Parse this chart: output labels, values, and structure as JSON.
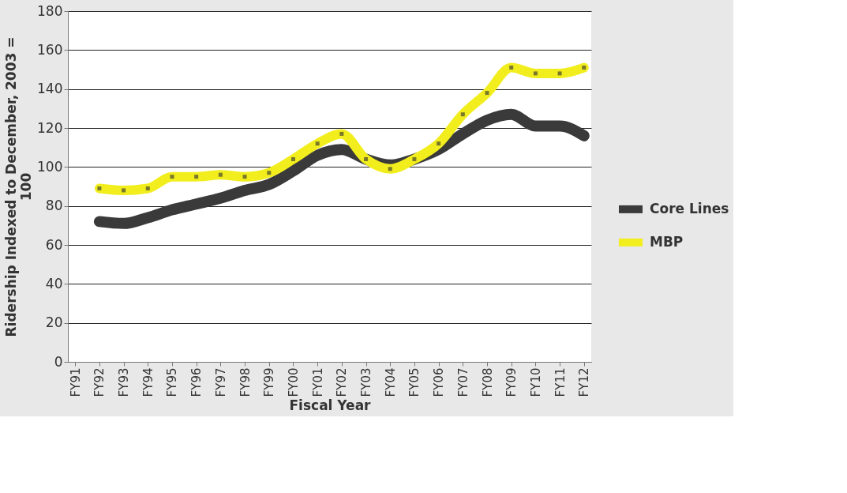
{
  "chart_data": {
    "type": "line",
    "xlabel": "Fiscal Year",
    "ylabel": "Ridership Indexed to December, 2003 = 100",
    "categories": [
      "FY91",
      "FY92",
      "FY93",
      "FY94",
      "FY95",
      "FY96",
      "FY97",
      "FY98",
      "FY99",
      "FY00",
      "FY01",
      "FY02",
      "FY03",
      "FY04",
      "FY05",
      "FY06",
      "FY07",
      "FY08",
      "FY09",
      "FY10",
      "FY11",
      "FY12"
    ],
    "ylim": [
      0,
      180
    ],
    "yticks": [
      0,
      20,
      40,
      60,
      80,
      100,
      120,
      140,
      160,
      180
    ],
    "grid": "y",
    "legend": "right",
    "series": [
      {
        "name": "Core Lines",
        "color": "#3a3a3a",
        "marker": "none",
        "values": [
          null,
          72,
          71,
          74,
          78,
          81,
          84,
          88,
          91,
          98,
          106,
          109,
          104,
          101,
          104,
          109,
          117,
          124,
          127,
          121,
          121,
          116
        ]
      },
      {
        "name": "MBP",
        "color": "#f2ee1e",
        "marker": "square",
        "values": [
          null,
          89,
          88,
          89,
          95,
          95,
          96,
          95,
          97,
          104,
          112,
          117,
          104,
          99,
          104,
          112,
          127,
          138,
          151,
          148,
          148,
          151
        ]
      }
    ]
  }
}
